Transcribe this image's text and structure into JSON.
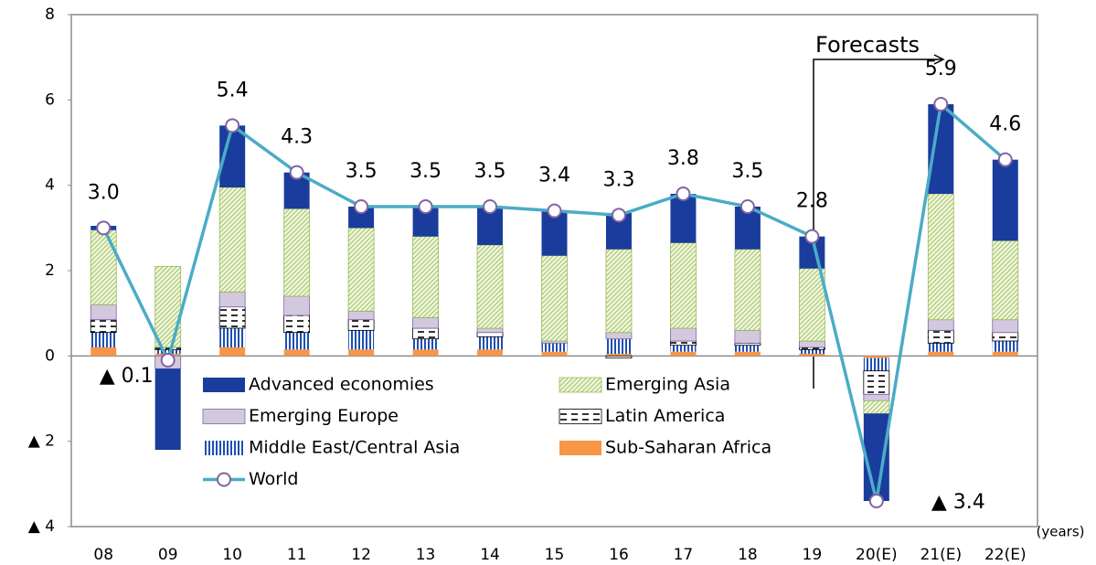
{
  "chart_data": {
    "type": "bar",
    "stacked": true,
    "categories": [
      "08",
      "09",
      "10",
      "11",
      "12",
      "13",
      "14",
      "15",
      "16",
      "17",
      "18",
      "19",
      "20(E)",
      "21(E)",
      "22(E)"
    ],
    "series": [
      {
        "name": "Advanced economies",
        "color": "#1a3c9c",
        "values": [
          0.1,
          -1.9,
          1.45,
          0.85,
          0.5,
          0.7,
          0.9,
          1.05,
          0.85,
          1.15,
          1.0,
          0.75,
          -2.05,
          2.1,
          1.9
        ]
      },
      {
        "name": "Emerging Asia",
        "color": "#9bbb59",
        "values": [
          1.75,
          1.9,
          2.45,
          2.05,
          1.95,
          1.9,
          1.95,
          2.0,
          1.95,
          2.0,
          1.9,
          1.7,
          -0.3,
          2.95,
          1.85
        ]
      },
      {
        "name": "Emerging Europe",
        "color": "#8064a2",
        "values": [
          0.35,
          -0.3,
          0.35,
          0.45,
          0.2,
          0.25,
          0.1,
          0.05,
          0.15,
          0.3,
          0.3,
          0.15,
          -0.15,
          0.25,
          0.3
        ]
      },
      {
        "name": "Latin America",
        "color": "#000000",
        "values": [
          0.3,
          0.05,
          0.5,
          0.4,
          0.25,
          0.25,
          0.1,
          0.0,
          -0.05,
          0.1,
          0.05,
          0.05,
          -0.55,
          0.3,
          0.2
        ]
      },
      {
        "name": "Middle East/Central Asia",
        "color": "#1f4fb4",
        "values": [
          0.35,
          0.1,
          0.45,
          0.4,
          0.45,
          0.25,
          0.3,
          0.2,
          0.35,
          0.15,
          0.15,
          0.1,
          -0.3,
          0.2,
          0.25
        ]
      },
      {
        "name": "Sub-Saharan Africa",
        "color": "#f79646",
        "values": [
          0.2,
          0.05,
          0.2,
          0.15,
          0.15,
          0.15,
          0.15,
          0.1,
          0.05,
          0.1,
          0.1,
          0.05,
          -0.05,
          0.1,
          0.1
        ]
      },
      {
        "name": "World",
        "type": "line",
        "color": "#4bacc6",
        "marker_color": "#8064a2",
        "values": [
          3.0,
          -0.1,
          5.4,
          4.3,
          3.5,
          3.5,
          3.5,
          3.4,
          3.3,
          3.8,
          3.5,
          2.8,
          -3.4,
          5.9,
          4.6
        ],
        "value_labels": [
          "3.0",
          "▲ 0.1",
          "5.4",
          "4.3",
          "3.5",
          "3.5",
          "3.5",
          "3.4",
          "3.3",
          "3.8",
          "3.5",
          "2.8",
          "▲ 3.4",
          "5.9",
          "4.6"
        ]
      }
    ],
    "ylim": [
      -4,
      8
    ],
    "yticks": [
      {
        "value": -4,
        "label": "▲ 4"
      },
      {
        "value": -2,
        "label": "▲ 2"
      },
      0,
      2,
      4,
      6,
      8
    ],
    "x_unit": "(years)",
    "annotation": "Forecasts",
    "grid": false
  }
}
